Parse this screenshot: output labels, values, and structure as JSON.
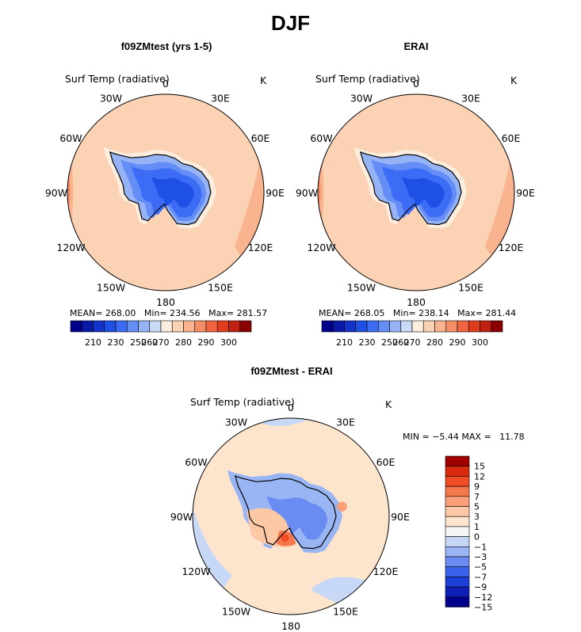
{
  "page_title": "DJF",
  "colors": {
    "sequential": [
      "#00008b",
      "#0a1aa8",
      "#1433c8",
      "#1e50e6",
      "#3c6cf5",
      "#648ef5",
      "#96b4f5",
      "#c8daf6",
      "#fbeedf",
      "#fcd2b4",
      "#f9b48f",
      "#f58e66",
      "#f06440",
      "#e03c1e",
      "#c0200f",
      "#8b0000"
    ],
    "diverging": [
      "#00008b",
      "#0f1fb5",
      "#1c3ed8",
      "#3a62ee",
      "#6a8cf2",
      "#9ab5f4",
      "#c6d8f6",
      "#f5f5f5",
      "#fde4cc",
      "#fcc8a6",
      "#fa9f77",
      "#f5784c",
      "#f04c26",
      "#d8280e",
      "#a00000"
    ]
  },
  "chart_data": [
    {
      "type": "polar-map",
      "title": "f09ZMtest (yrs 1-5)",
      "field": "Surf Temp (radiative)",
      "units": "K",
      "lon_labels": [
        "0",
        "30E",
        "60E",
        "90E",
        "120E",
        "150E",
        "180",
        "150W",
        "120W",
        "90W",
        "60W",
        "30W"
      ],
      "stats": {
        "mean_label": "MEAN=",
        "mean": "268.00",
        "min_label": "Min=",
        "min": "234.56",
        "max_label": "Max=",
        "max": "281.57"
      },
      "colorbar_ticks": [
        "210",
        "230",
        "250",
        "260",
        "270",
        "280",
        "290",
        "300"
      ]
    },
    {
      "type": "polar-map",
      "title": "ERAI",
      "field": "Surf Temp (radiative)",
      "units": "K",
      "lon_labels": [
        "0",
        "30E",
        "60E",
        "90E",
        "120E",
        "150E",
        "180",
        "150W",
        "120W",
        "90W",
        "60W",
        "30W"
      ],
      "stats": {
        "mean_label": "MEAN=",
        "mean": "268.05",
        "min_label": "Min=",
        "min": "238.14",
        "max_label": "Max=",
        "max": "281.44"
      },
      "colorbar_ticks": [
        "210",
        "230",
        "250",
        "260",
        "270",
        "280",
        "290",
        "300"
      ]
    },
    {
      "type": "polar-map",
      "title": "f09ZMtest - ERAI",
      "field": "Surf Temp (radiative)",
      "units": "K",
      "lon_labels": [
        "0",
        "30E",
        "60E",
        "90E",
        "120E",
        "150E",
        "180",
        "150W",
        "120W",
        "90W",
        "60W",
        "30W"
      ],
      "stats": {
        "min_label": "MIN =",
        "min": "−5.44",
        "max_label": "MAX =",
        "max": "11.78"
      },
      "colorbar_ticks": [
        "15",
        "12",
        "9",
        "7",
        "5",
        "3",
        "1",
        "0",
        "−1",
        "−3",
        "−5",
        "−7",
        "−9",
        "−12",
        "−15"
      ]
    }
  ]
}
